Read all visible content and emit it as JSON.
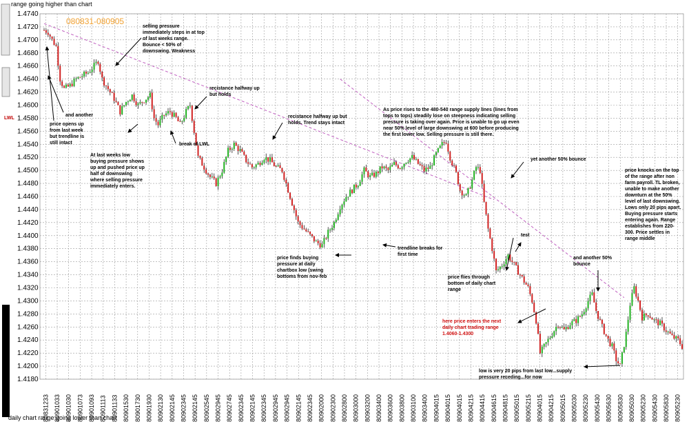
{
  "top_label": "range going higher than chart",
  "bottom_label": "daily chart range going lower than chart",
  "lwl_label": "LWL",
  "chart_data": {
    "type": "candlestick",
    "title": "080831-080905",
    "ylim": [
      1.418,
      1.474
    ],
    "yticks": [
      "1.4740",
      "1.4720",
      "1.4700",
      "1.4680",
      "1.4660",
      "1.4640",
      "1.4620",
      "1.4600",
      "1.4580",
      "1.4560",
      "1.4540",
      "1.4520",
      "1.4500",
      "1.4480",
      "1.4460",
      "1.4440",
      "1.4420",
      "1.4400",
      "1.4380",
      "1.4360",
      "1.4340",
      "1.4320",
      "1.4300",
      "1.4280",
      "1.4260",
      "1.4240",
      "1.4220",
      "1.4200",
      "1.4180"
    ],
    "xticks": [
      "80831233",
      "80901033",
      "80901030",
      "80901073",
      "80901093",
      "80901113",
      "80901133",
      "80901530",
      "80901730",
      "80901930",
      "80902130",
      "80902145",
      "80902345",
      "80902145",
      "80902545",
      "80902945",
      "80902745",
      "80902345",
      "80902145",
      "80902345",
      "80902945",
      "80902945",
      "80902145",
      "80902345",
      "80902000",
      "80902300",
      "80902800",
      "80903000",
      "80903200",
      "80903400",
      "80903600",
      "80903800",
      "80903100",
      "80903400",
      "80904015",
      "80904015",
      "80904015",
      "80904215",
      "80904415",
      "80904615",
      "80904815",
      "80905015",
      "80905215",
      "80904015",
      "80904215",
      "80905015",
      "80905030",
      "80905230",
      "80905430",
      "80905630",
      "80905830",
      "80905030",
      "80905230",
      "80905430",
      "80905830",
      "80905230"
    ],
    "path": [
      [
        0,
        1.4715
      ],
      [
        2,
        1.4712
      ],
      [
        4,
        1.47
      ],
      [
        6,
        1.469
      ],
      [
        8,
        1.464
      ],
      [
        10,
        1.4625
      ],
      [
        13,
        1.463
      ],
      [
        16,
        1.464
      ],
      [
        19,
        1.4645
      ],
      [
        22,
        1.465
      ],
      [
        25,
        1.466
      ],
      [
        27,
        1.4668
      ],
      [
        29,
        1.464
      ],
      [
        32,
        1.4625
      ],
      [
        35,
        1.461
      ],
      [
        38,
        1.459
      ],
      [
        41,
        1.4605
      ],
      [
        44,
        1.4615
      ],
      [
        47,
        1.46
      ],
      [
        50,
        1.4608
      ],
      [
        53,
        1.4615
      ],
      [
        55,
        1.458
      ],
      [
        57,
        1.457
      ],
      [
        60,
        1.4585
      ],
      [
        63,
        1.459
      ],
      [
        66,
        1.458
      ],
      [
        68,
        1.457
      ],
      [
        71,
        1.459
      ],
      [
        73,
        1.46
      ],
      [
        75,
        1.456
      ],
      [
        77,
        1.452
      ],
      [
        80,
        1.4505
      ],
      [
        83,
        1.449
      ],
      [
        86,
        1.448
      ],
      [
        89,
        1.45
      ],
      [
        92,
        1.453
      ],
      [
        95,
        1.454
      ],
      [
        98,
        1.453
      ],
      [
        101,
        1.4515
      ],
      [
        104,
        1.4505
      ],
      [
        107,
        1.451
      ],
      [
        110,
        1.452
      ],
      [
        113,
        1.4515
      ],
      [
        116,
        1.4505
      ],
      [
        119,
        1.45
      ],
      [
        121,
        1.448
      ],
      [
        123,
        1.446
      ],
      [
        125,
        1.444
      ],
      [
        127,
        1.442
      ],
      [
        130,
        1.441
      ],
      [
        133,
        1.44
      ],
      [
        136,
        1.439
      ],
      [
        139,
        1.4385
      ],
      [
        142,
        1.4405
      ],
      [
        145,
        1.442
      ],
      [
        148,
        1.4445
      ],
      [
        151,
        1.446
      ],
      [
        154,
        1.447
      ],
      [
        157,
        1.448
      ],
      [
        160,
        1.45
      ],
      [
        163,
        1.449
      ],
      [
        166,
        1.4495
      ],
      [
        169,
        1.4505
      ],
      [
        172,
        1.45
      ],
      [
        175,
        1.451
      ],
      [
        178,
        1.4505
      ],
      [
        181,
        1.4515
      ],
      [
        184,
        1.452
      ],
      [
        187,
        1.451
      ],
      [
        190,
        1.45
      ],
      [
        193,
        1.4505
      ],
      [
        196,
        1.4525
      ],
      [
        199,
        1.454
      ],
      [
        201,
        1.4545
      ],
      [
        203,
        1.452
      ],
      [
        206,
        1.4495
      ],
      [
        208,
        1.447
      ],
      [
        211,
        1.446
      ],
      [
        214,
        1.4485
      ],
      [
        216,
        1.4505
      ],
      [
        218,
        1.45
      ],
      [
        220,
        1.445
      ],
      [
        222,
        1.441
      ],
      [
        224,
        1.438
      ],
      [
        226,
        1.4345
      ],
      [
        229,
        1.4355
      ],
      [
        232,
        1.437
      ],
      [
        234,
        1.436
      ],
      [
        237,
        1.4345
      ],
      [
        240,
        1.433
      ],
      [
        242,
        1.432
      ],
      [
        244,
        1.43
      ],
      [
        246,
        1.427
      ],
      [
        248,
        1.422
      ],
      [
        251,
        1.4235
      ],
      [
        254,
        1.425
      ],
      [
        257,
        1.4265
      ],
      [
        260,
        1.4255
      ],
      [
        263,
        1.4265
      ],
      [
        266,
        1.427
      ],
      [
        269,
        1.428
      ],
      [
        272,
        1.43
      ],
      [
        274,
        1.431
      ],
      [
        276,
        1.4285
      ],
      [
        279,
        1.426
      ],
      [
        282,
        1.424
      ],
      [
        284,
        1.423
      ],
      [
        286,
        1.421
      ],
      [
        288,
        1.42
      ],
      [
        291,
        1.425
      ],
      [
        293,
        1.4295
      ],
      [
        295,
        1.432
      ],
      [
        297,
        1.43
      ],
      [
        299,
        1.4275
      ],
      [
        302,
        1.428
      ],
      [
        305,
        1.427
      ],
      [
        308,
        1.4265
      ],
      [
        311,
        1.4255
      ],
      [
        314,
        1.4245
      ],
      [
        317,
        1.424
      ],
      [
        319,
        1.423
      ]
    ],
    "trendlines": [
      [
        [
          0,
          1.4725
        ],
        [
          225,
          1.4455
        ]
      ],
      [
        [
          148,
          1.464
        ],
        [
          290,
          1.4305
        ]
      ]
    ]
  },
  "annotations": {
    "a1": "selling pressure immediately steps in at top of last weeks range. Bounce < 50% of downswing. Weakness",
    "a2": "and another",
    "a3": "price opens up from last week but trendline is still intact",
    "a4": "recistance halfway up but holds",
    "a5": "break of LWL",
    "a6": "recistance halfway up but holds. Trend stays intact",
    "a7": "At last weeks low buying pressure shows up and pushed price up half of downswing where selling pressure immediately enters.",
    "a8": "As price rises to the 480-540 range supply lines (lines from tops to tops) steadily lose on steepness indicating selling pressure is taking over again. Price is unable to go up even near 50% level of large downswing at 600 before producing the first lower low. Selling pressure is still there.",
    "a9": "yet another 50% bounce",
    "a10": "price knocks on the top of the range after non farm payroll. TL broken, unable to make another downturn at the 50% level of last downswing. Lows only 20 pips apart. Buying pressure starts entering again. Range establishes from 220-300. Price settles in range middle",
    "a11": "trendline breaks for first time",
    "a12": "price finds buying pressure at daily chartbox low (swing bottoms from nov-feb",
    "a13": "test",
    "a14": "and another 50% bounce",
    "a15": "price flies through bottom of daily chart range",
    "a16": "here price enters the next daily chart trading range 1.4060-1.4300",
    "a17": "low is very 20 pips from last low...supply pressure receding...for now"
  }
}
